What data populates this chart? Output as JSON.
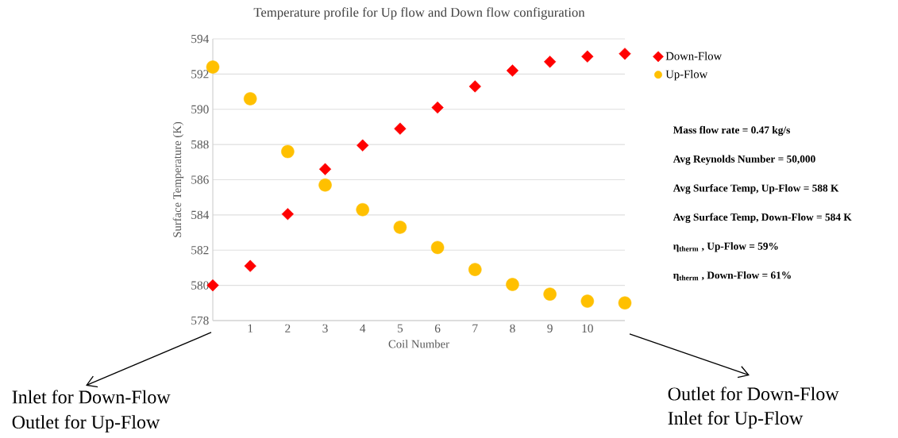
{
  "chart_data": {
    "type": "scatter",
    "title": "Temperature profile for Up flow and Down flow configuration",
    "xlabel": "Coil Number",
    "ylabel": "Surface Temperature (K)",
    "x": [
      0,
      1,
      2,
      3,
      4,
      5,
      6,
      7,
      8,
      9,
      10,
      11
    ],
    "series": [
      {
        "name": "Down-Flow",
        "color": "#ff0000",
        "marker": "diamond",
        "values": [
          580.0,
          581.1,
          584.05,
          586.6,
          587.95,
          588.9,
          590.1,
          591.3,
          592.2,
          592.7,
          593.0,
          593.15
        ]
      },
      {
        "name": "Up-Flow",
        "color": "#ffc000",
        "marker": "circle",
        "values": [
          592.4,
          590.6,
          587.6,
          585.7,
          584.3,
          583.3,
          582.15,
          580.9,
          580.05,
          579.5,
          579.1,
          579.0
        ]
      }
    ],
    "xlim": [
      0,
      11
    ],
    "xticks": [
      1,
      2,
      3,
      4,
      5,
      6,
      7,
      8,
      9,
      10
    ],
    "ylim": [
      578,
      594
    ],
    "yticks": [
      578,
      580,
      582,
      584,
      586,
      588,
      590,
      592,
      594
    ],
    "grid": "y",
    "legend": "right",
    "annotations": [
      "Mass flow rate = 0.47 kg/s",
      "Avg Reynolds Number = 50,000",
      "Avg Surface Temp, Up-Flow = 588 K",
      "Avg Surface Temp, Down-Flow = 584 K",
      "η$_{therm}$ , Up-Flow = 59%",
      "η$_{therm}$ , Down-Flow = 61%",
      "Inlet for Down-Flow",
      "Outlet for Up-Flow",
      "Outlet for Down-Flow",
      "Inlet for Up-Flow"
    ]
  }
}
